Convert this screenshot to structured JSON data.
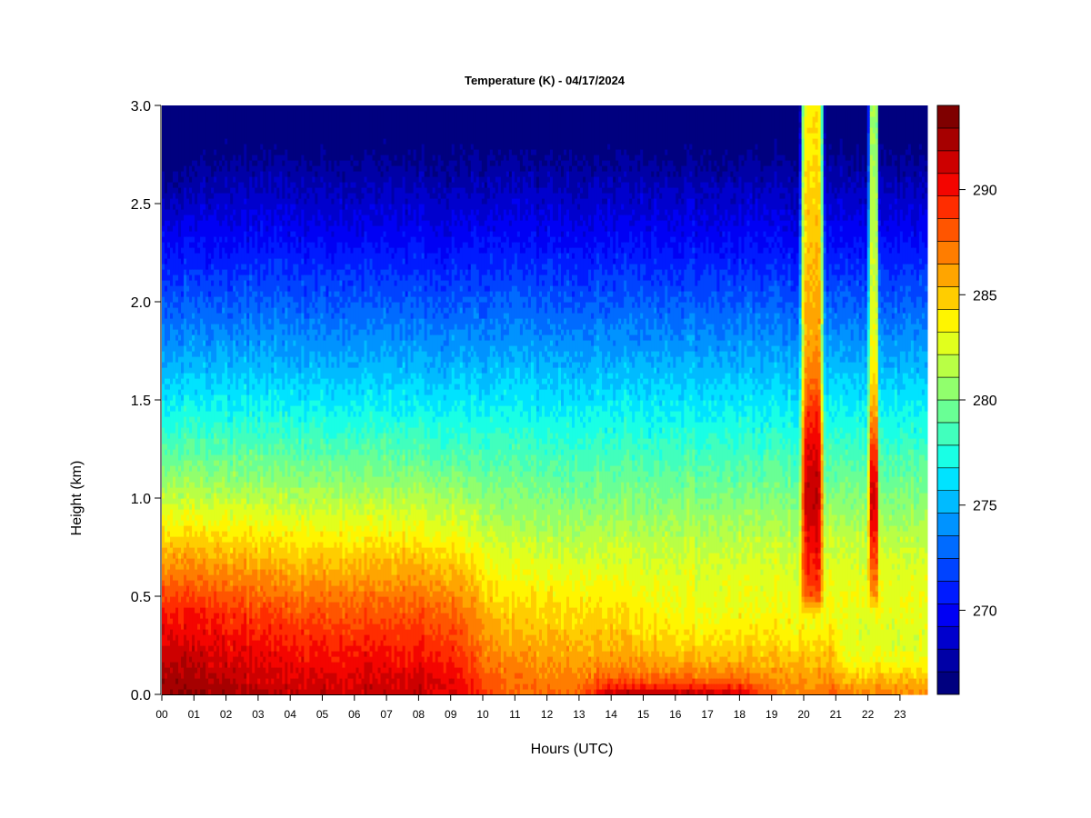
{
  "chart_data": {
    "type": "heatmap",
    "title": "Temperature (K) - 04/17/2024",
    "xlabel": "Hours (UTC)",
    "ylabel": "Height (km)",
    "x_ticks": [
      "00",
      "01",
      "02",
      "03",
      "04",
      "05",
      "06",
      "07",
      "08",
      "09",
      "10",
      "11",
      "12",
      "13",
      "14",
      "15",
      "16",
      "17",
      "18",
      "19",
      "20",
      "21",
      "22",
      "23"
    ],
    "y_ticks": [
      "0.0",
      "0.5",
      "1.0",
      "1.5",
      "2.0",
      "2.5",
      "3.0"
    ],
    "xlim": [
      0,
      23.85
    ],
    "ylim": [
      0,
      3.0
    ],
    "colorbar": {
      "min": 266,
      "max": 294,
      "levels": 28,
      "ticks": [
        "270",
        "275",
        "280",
        "285",
        "290"
      ],
      "tick_values": [
        270,
        275,
        280,
        285,
        290
      ],
      "colors": [
        "#00007f",
        "#0000a6",
        "#0000cd",
        "#0000f4",
        "#001bff",
        "#0043ff",
        "#006bff",
        "#0093ff",
        "#00bbff",
        "#00e3ff",
        "#19ffe5",
        "#41ffbd",
        "#69ff95",
        "#91ff6d",
        "#b9ff45",
        "#e1ff1d",
        "#fff500",
        "#ffcd00",
        "#ffa500",
        "#ff7d00",
        "#ff5500",
        "#ff2d00",
        "#f40500",
        "#cd0000",
        "#a60000",
        "#7f0000"
      ]
    },
    "features": {
      "surface_warm_layer_hours": [
        0,
        10
      ],
      "afternoon_surface_heating_hours": [
        13,
        19
      ],
      "warm_plumes_hours": [
        [
          19.7,
          20.9
        ],
        [
          22.0,
          22.4
        ]
      ]
    },
    "grid": false,
    "legend": "colorbar-right"
  }
}
